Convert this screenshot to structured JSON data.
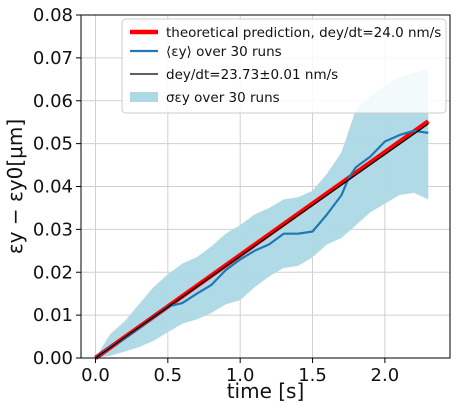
{
  "chart_data": {
    "type": "line",
    "xlabel": "time [s]",
    "ylabel": "εy − εy0[μm]",
    "xlim": [
      -0.1,
      2.45
    ],
    "ylim": [
      0.0,
      0.08
    ],
    "xticks": [
      0.0,
      0.5,
      1.0,
      1.5,
      2.0
    ],
    "xtick_labels": [
      "0.0",
      "0.5",
      "1.0",
      "1.5",
      "2.0"
    ],
    "yticks": [
      0.0,
      0.01,
      0.02,
      0.03,
      0.04,
      0.05,
      0.06,
      0.07,
      0.08
    ],
    "ytick_labels": [
      "0.00",
      "0.01",
      "0.02",
      "0.03",
      "0.04",
      "0.05",
      "0.06",
      "0.07",
      "0.08"
    ],
    "grid": true,
    "legend_position": "top-right",
    "colors": {
      "theory": "#ff0000",
      "mean": "#1f77b4",
      "fit": "#000000",
      "band": "#add8e6"
    },
    "series": [
      {
        "name": "theoretical prediction, dey/dt=24.0 nm/s",
        "kind": "line",
        "x": [
          0.0,
          2.3
        ],
        "y": [
          0.0,
          0.0552
        ]
      },
      {
        "name": "⟨εy⟩ over 30 runs",
        "kind": "line",
        "x": [
          0.0,
          0.1,
          0.2,
          0.3,
          0.4,
          0.5,
          0.6,
          0.7,
          0.8,
          0.9,
          1.0,
          1.1,
          1.2,
          1.3,
          1.4,
          1.5,
          1.6,
          1.7,
          1.75,
          1.8,
          1.9,
          2.0,
          2.1,
          2.2,
          2.3
        ],
        "y": [
          0.0,
          0.0025,
          0.0045,
          0.007,
          0.0095,
          0.012,
          0.0128,
          0.015,
          0.017,
          0.0205,
          0.023,
          0.025,
          0.0265,
          0.029,
          0.029,
          0.0295,
          0.0335,
          0.038,
          0.042,
          0.0445,
          0.047,
          0.0505,
          0.052,
          0.053,
          0.0525
        ]
      },
      {
        "name": "dey/dt=23.73±0.01 nm/s",
        "kind": "line",
        "x": [
          0.0,
          2.3
        ],
        "y": [
          0.0,
          0.0546
        ]
      },
      {
        "name": "σεy over 30 runs",
        "kind": "band",
        "x": [
          0.0,
          0.1,
          0.2,
          0.3,
          0.4,
          0.5,
          0.6,
          0.7,
          0.8,
          0.9,
          1.0,
          1.1,
          1.2,
          1.3,
          1.4,
          1.5,
          1.6,
          1.7,
          1.8,
          1.9,
          2.0,
          2.1,
          2.2,
          2.3
        ],
        "lower": [
          0.0,
          0.0005,
          0.0015,
          0.0025,
          0.004,
          0.006,
          0.008,
          0.009,
          0.0105,
          0.0125,
          0.0135,
          0.0165,
          0.019,
          0.021,
          0.0215,
          0.0235,
          0.0265,
          0.028,
          0.031,
          0.034,
          0.036,
          0.038,
          0.0385,
          0.037
        ],
        "upper": [
          0.0,
          0.0055,
          0.0085,
          0.0125,
          0.0165,
          0.0195,
          0.022,
          0.0235,
          0.026,
          0.029,
          0.031,
          0.0335,
          0.035,
          0.037,
          0.0375,
          0.039,
          0.043,
          0.048,
          0.058,
          0.061,
          0.0635,
          0.0655,
          0.0665,
          0.0675
        ]
      }
    ]
  }
}
